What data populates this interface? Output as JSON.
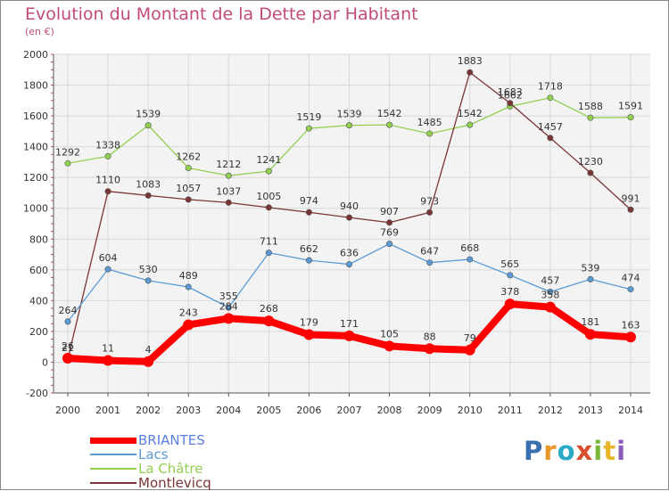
{
  "chart_data": {
    "type": "line",
    "title": "Evolution du Montant de la Dette par Habitant",
    "subtitle": "(en €)",
    "x": [
      "2000",
      "2001",
      "2002",
      "2003",
      "2004",
      "2005",
      "2006",
      "2007",
      "2008",
      "2009",
      "2010",
      "2011",
      "2012",
      "2013",
      "2014"
    ],
    "ylim": [
      -200,
      2000
    ],
    "yticks": [
      -200,
      0,
      200,
      400,
      600,
      800,
      1000,
      1200,
      1400,
      1600,
      1800,
      2000
    ],
    "grid": true,
    "legend_position": "bottom-left",
    "series": [
      {
        "name": "BRIANTES",
        "color": "#ff0000",
        "values": [
          26,
          11,
          4,
          243,
          284,
          268,
          179,
          171,
          105,
          88,
          79,
          378,
          358,
          181,
          163
        ]
      },
      {
        "name": "Lacs",
        "color": "#5b9bd5",
        "values": [
          264,
          604,
          530,
          489,
          355,
          711,
          662,
          636,
          769,
          647,
          668,
          565,
          457,
          539,
          474
        ]
      },
      {
        "name": "La Châtre",
        "color": "#92d050",
        "values": [
          1292,
          1338,
          1539,
          1262,
          1212,
          1241,
          1519,
          1539,
          1542,
          1485,
          1542,
          1662,
          1718,
          1588,
          1591
        ]
      },
      {
        "name": "Montlevicq",
        "color": "#7b3535",
        "values": [
          21,
          1110,
          1083,
          1057,
          1037,
          1005,
          974,
          940,
          907,
          973,
          1883,
          1683,
          1457,
          1230,
          991
        ]
      }
    ]
  },
  "logo": {
    "p": "P",
    "r": "r",
    "o": "o",
    "x": "x",
    "i": "i",
    "t": "t",
    "i2": "i"
  }
}
